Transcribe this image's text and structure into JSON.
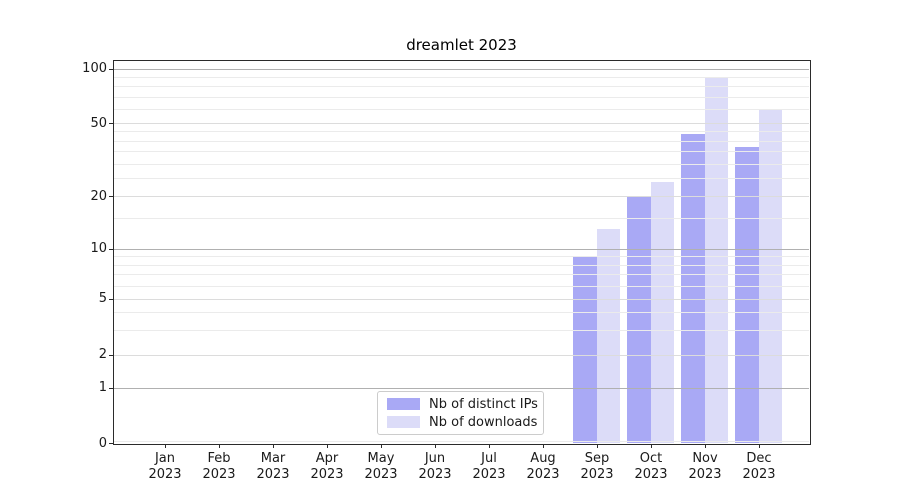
{
  "chart_data": {
    "type": "bar",
    "title": "dreamlet 2023",
    "categories": [
      "Jan",
      "Feb",
      "Mar",
      "Apr",
      "May",
      "Jun",
      "Jul",
      "Aug",
      "Sep",
      "Oct",
      "Nov",
      "Dec"
    ],
    "year_label": "2023",
    "series": [
      {
        "name": "Nb of distinct IPs",
        "color": "rgba(123,123,240,0.65)",
        "apparent_color": "#a9a9f5",
        "values": [
          0,
          0,
          0,
          0,
          0,
          0,
          0,
          0,
          9,
          20,
          44,
          37
        ]
      },
      {
        "name": "Nb of downloads",
        "color": "rgba(201,201,244,0.65)",
        "apparent_color": "#dcdcf8",
        "values": [
          0,
          0,
          0,
          0,
          0,
          0,
          0,
          0,
          13,
          24,
          90,
          60
        ]
      }
    ],
    "yscale": "symlog",
    "ylim": [
      0,
      112
    ],
    "yticks": [
      0,
      1,
      2,
      5,
      10,
      20,
      50,
      100
    ],
    "decade_gridlines": [
      1,
      10,
      100
    ],
    "labeled_gridlines": [
      2,
      5,
      20,
      50
    ],
    "minor_gridlines": [
      3,
      4,
      6,
      7,
      8,
      9,
      15,
      25,
      30,
      35,
      40,
      45,
      60,
      70,
      80,
      90
    ],
    "grid": true,
    "legend_position": "lower center inside",
    "colors": {
      "decade_grid": "#b0b0b0",
      "labeled_grid": "#dcdcdc",
      "minor_grid": "#ebebeb",
      "spine": "#2b2b2b",
      "text": "#1a1a1a"
    }
  }
}
